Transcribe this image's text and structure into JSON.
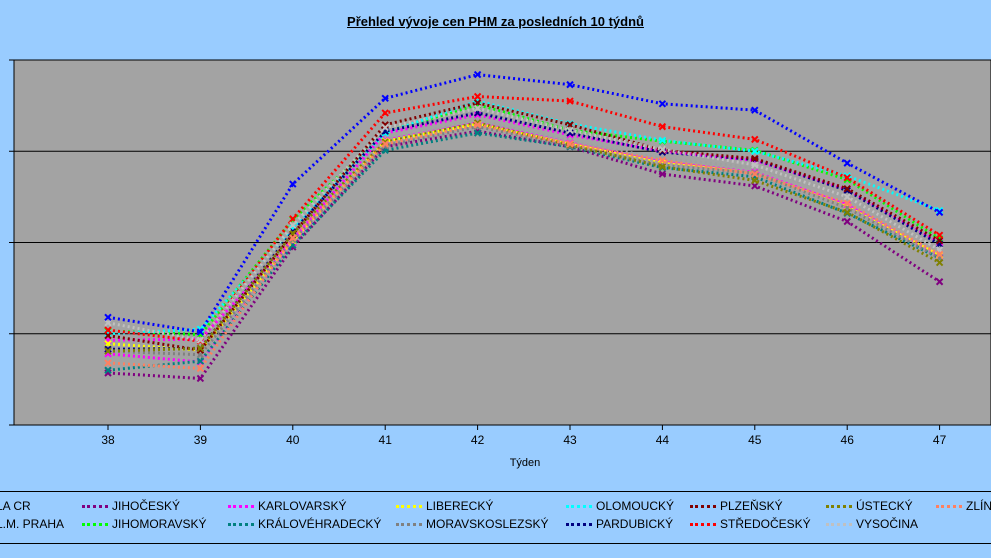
{
  "chart_data": {
    "type": "line",
    "title": "Přehled vývoje cen PHM za posledních 10 týdnů",
    "xlabel": "Týden",
    "ylabel": "",
    "x": [
      "38",
      "39",
      "40",
      "41",
      "42",
      "43",
      "44",
      "45",
      "46",
      "47"
    ],
    "ylim": [
      0,
      4
    ],
    "grid": true,
    "legend_position": "bottom",
    "series": [
      {
        "name": "LA CR",
        "color": "#a0a0a0",
        "values": [
          0.86,
          0.8,
          1.98,
          3.13,
          3.34,
          3.11,
          2.92,
          2.82,
          2.5,
          1.93
        ]
      },
      {
        "name": "L.M. PRAHA",
        "color": "#ff00ff",
        "values": [
          0.93,
          0.94,
          2.03,
          3.2,
          3.4,
          3.18,
          3.0,
          2.9,
          2.58,
          2.0
        ]
      },
      {
        "name": "JIHOČESKÝ",
        "color": "#800080",
        "values": [
          0.57,
          0.51,
          1.95,
          3.05,
          3.22,
          3.05,
          2.75,
          2.62,
          2.23,
          1.57
        ]
      },
      {
        "name": "JIHOMORAVSKÝ",
        "color": "#00ff00",
        "values": [
          1.03,
          0.99,
          2.25,
          3.21,
          3.51,
          3.23,
          3.11,
          3.01,
          2.69,
          2.04
        ]
      },
      {
        "name": "KARLOVARSKÝ",
        "color": "#ff00ff",
        "values": [
          0.78,
          0.69,
          2.0,
          3.12,
          3.31,
          3.09,
          2.88,
          2.77,
          2.41,
          1.85
        ]
      },
      {
        "name": "KRÁLOVÉHRADECKÝ",
        "color": "#008080",
        "values": [
          0.6,
          0.7,
          1.97,
          3.01,
          3.2,
          3.05,
          2.82,
          2.72,
          2.32,
          1.83
        ]
      },
      {
        "name": "LIBERECKÝ",
        "color": "#ffff00",
        "values": [
          0.89,
          0.82,
          2.02,
          3.11,
          3.3,
          3.08,
          2.87,
          2.76,
          2.39,
          1.86
        ]
      },
      {
        "name": "MORAVSKOSLEZSKÝ",
        "color": "#808080",
        "values": [
          0.81,
          0.77,
          2.03,
          3.06,
          3.27,
          3.06,
          2.85,
          2.76,
          2.38,
          1.83
        ]
      },
      {
        "name": "OLOMOUCKÝ",
        "color": "#00ffff",
        "values": [
          1.0,
          1.05,
          2.16,
          3.2,
          3.55,
          3.3,
          3.12,
          3.0,
          2.73,
          2.35
        ]
      },
      {
        "name": "PARDUBICKÝ",
        "color": "#000080",
        "values": [
          0.83,
          0.84,
          2.12,
          3.22,
          3.42,
          3.2,
          2.99,
          2.91,
          2.57,
          1.98
        ]
      },
      {
        "name": "PLZEŇSKÝ",
        "color": "#800000",
        "values": [
          0.98,
          0.82,
          2.09,
          3.29,
          3.53,
          3.29,
          3.01,
          2.92,
          2.59,
          2.02
        ]
      },
      {
        "name": "STŘEDOČESKÝ",
        "color": "#ff0000",
        "values": [
          1.04,
          0.92,
          2.26,
          3.42,
          3.6,
          3.55,
          3.27,
          3.13,
          2.71,
          2.08
        ]
      },
      {
        "name": "ÚSTECKÝ",
        "color": "#808000",
        "values": [
          0.81,
          0.84,
          2.1,
          3.1,
          3.31,
          3.07,
          2.83,
          2.68,
          2.33,
          1.78
        ]
      },
      {
        "name": "VYSOČINA",
        "color": "#c0c0c0",
        "values": [
          1.12,
          0.93,
          2.19,
          3.26,
          3.47,
          3.23,
          3.02,
          2.85,
          2.5,
          1.92
        ]
      },
      {
        "name": "ZLÍN",
        "color": "#ff8060",
        "values": [
          0.68,
          0.62,
          2.05,
          3.08,
          3.29,
          3.08,
          2.9,
          2.75,
          2.43,
          1.87
        ]
      },
      {
        "name": "",
        "color": "#0000ff",
        "values": [
          1.18,
          1.02,
          2.64,
          3.58,
          3.84,
          3.73,
          3.52,
          3.45,
          2.87,
          2.33
        ]
      }
    ]
  }
}
